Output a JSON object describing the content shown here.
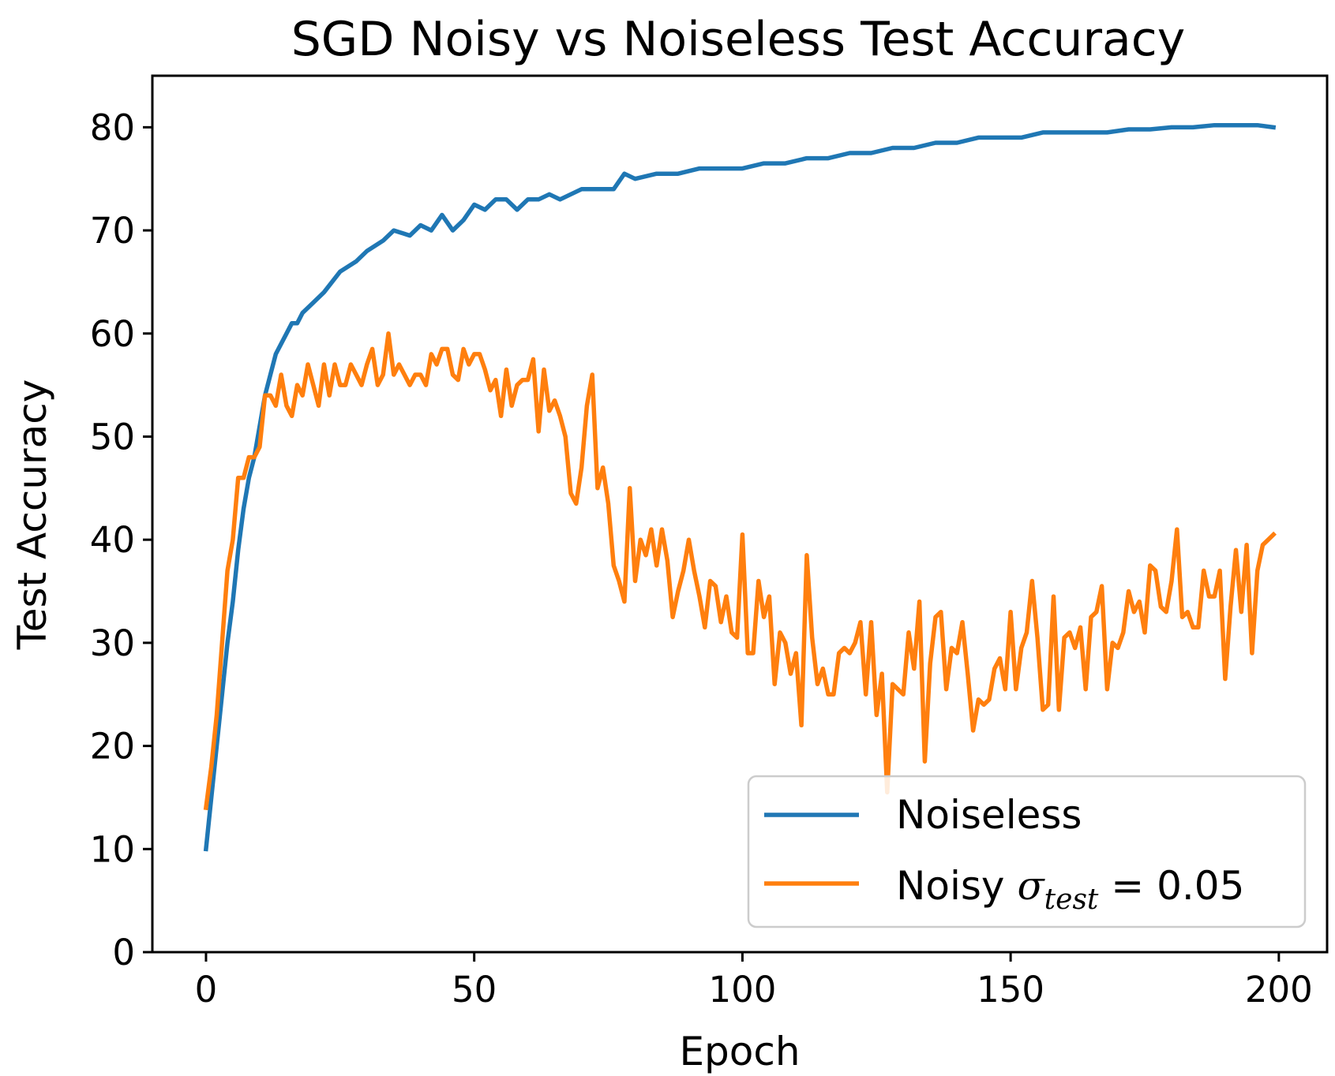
{
  "chart_data": {
    "type": "line",
    "title": "SGD Noisy vs Noiseless Test Accuracy",
    "xlabel": "Epoch",
    "ylabel": "Test Accuracy",
    "xlim": [
      -10,
      209
    ],
    "ylim": [
      0,
      85
    ],
    "xticks": [
      0,
      50,
      100,
      150,
      200
    ],
    "yticks": [
      0,
      10,
      20,
      30,
      40,
      50,
      60,
      70,
      80
    ],
    "grid": false,
    "legend_position": "lower-right",
    "series": [
      {
        "name": "Noiseless",
        "color": "#1f77b4",
        "points": [
          [
            0,
            10
          ],
          [
            1,
            15
          ],
          [
            2,
            20
          ],
          [
            3,
            25
          ],
          [
            4,
            30
          ],
          [
            5,
            34
          ],
          [
            6,
            39
          ],
          [
            7,
            43
          ],
          [
            8,
            46
          ],
          [
            9,
            48
          ],
          [
            10,
            51
          ],
          [
            11,
            54
          ],
          [
            12,
            56
          ],
          [
            13,
            58
          ],
          [
            14,
            59
          ],
          [
            15,
            60
          ],
          [
            16,
            61
          ],
          [
            17,
            61
          ],
          [
            18,
            62
          ],
          [
            19,
            62.5
          ],
          [
            20,
            63
          ],
          [
            22,
            64
          ],
          [
            25,
            66
          ],
          [
            28,
            67
          ],
          [
            30,
            68
          ],
          [
            33,
            69
          ],
          [
            35,
            70
          ],
          [
            38,
            69.5
          ],
          [
            40,
            70.5
          ],
          [
            42,
            70
          ],
          [
            44,
            71.5
          ],
          [
            46,
            70
          ],
          [
            48,
            71
          ],
          [
            50,
            72.5
          ],
          [
            52,
            72
          ],
          [
            54,
            73
          ],
          [
            56,
            73
          ],
          [
            58,
            72
          ],
          [
            60,
            73
          ],
          [
            62,
            73
          ],
          [
            64,
            73.5
          ],
          [
            66,
            73
          ],
          [
            68,
            73.5
          ],
          [
            70,
            74
          ],
          [
            72,
            74
          ],
          [
            74,
            74
          ],
          [
            76,
            74
          ],
          [
            78,
            75.5
          ],
          [
            80,
            75
          ],
          [
            84,
            75.5
          ],
          [
            88,
            75.5
          ],
          [
            92,
            76
          ],
          [
            96,
            76
          ],
          [
            100,
            76
          ],
          [
            104,
            76.5
          ],
          [
            108,
            76.5
          ],
          [
            112,
            77
          ],
          [
            116,
            77
          ],
          [
            120,
            77.5
          ],
          [
            124,
            77.5
          ],
          [
            128,
            78
          ],
          [
            132,
            78
          ],
          [
            136,
            78.5
          ],
          [
            140,
            78.5
          ],
          [
            144,
            79
          ],
          [
            148,
            79
          ],
          [
            152,
            79
          ],
          [
            156,
            79.5
          ],
          [
            160,
            79.5
          ],
          [
            164,
            79.5
          ],
          [
            168,
            79.5
          ],
          [
            172,
            79.8
          ],
          [
            176,
            79.8
          ],
          [
            180,
            80
          ],
          [
            184,
            80
          ],
          [
            188,
            80.2
          ],
          [
            192,
            80.2
          ],
          [
            196,
            80.2
          ],
          [
            199,
            80
          ]
        ]
      },
      {
        "name": "Noisy σtest = 0.05",
        "legend_prefix": "Noisy",
        "legend_symbol": "σ",
        "legend_subscript": "test",
        "legend_suffix": " = 0.05",
        "color": "#ff7f0e",
        "points": [
          [
            0,
            14
          ],
          [
            1,
            18
          ],
          [
            2,
            23
          ],
          [
            3,
            30
          ],
          [
            4,
            37
          ],
          [
            5,
            40
          ],
          [
            6,
            46
          ],
          [
            7,
            46
          ],
          [
            8,
            48
          ],
          [
            9,
            48
          ],
          [
            10,
            49
          ],
          [
            11,
            54
          ],
          [
            12,
            54
          ],
          [
            13,
            53
          ],
          [
            14,
            56
          ],
          [
            15,
            53
          ],
          [
            16,
            52
          ],
          [
            17,
            55
          ],
          [
            18,
            54
          ],
          [
            19,
            57
          ],
          [
            20,
            55
          ],
          [
            21,
            53
          ],
          [
            22,
            57
          ],
          [
            23,
            54
          ],
          [
            24,
            57
          ],
          [
            25,
            55
          ],
          [
            26,
            55
          ],
          [
            27,
            57
          ],
          [
            28,
            56
          ],
          [
            29,
            55
          ],
          [
            30,
            57
          ],
          [
            31,
            58.5
          ],
          [
            32,
            55
          ],
          [
            33,
            56
          ],
          [
            34,
            60
          ],
          [
            35,
            56
          ],
          [
            36,
            57
          ],
          [
            37,
            56
          ],
          [
            38,
            55
          ],
          [
            39,
            56
          ],
          [
            40,
            56
          ],
          [
            41,
            55
          ],
          [
            42,
            58
          ],
          [
            43,
            57
          ],
          [
            44,
            58.5
          ],
          [
            45,
            58.5
          ],
          [
            46,
            56
          ],
          [
            47,
            55.5
          ],
          [
            48,
            58.5
          ],
          [
            49,
            57
          ],
          [
            50,
            58
          ],
          [
            51,
            58
          ],
          [
            52,
            56.5
          ],
          [
            53,
            54.5
          ],
          [
            54,
            55.5
          ],
          [
            55,
            52
          ],
          [
            56,
            56.5
          ],
          [
            57,
            53
          ],
          [
            58,
            55
          ],
          [
            59,
            55.5
          ],
          [
            60,
            55.5
          ],
          [
            61,
            57.5
          ],
          [
            62,
            50.5
          ],
          [
            63,
            56.5
          ],
          [
            64,
            52.5
          ],
          [
            65,
            53.5
          ],
          [
            66,
            52
          ],
          [
            67,
            50
          ],
          [
            68,
            44.5
          ],
          [
            69,
            43.5
          ],
          [
            70,
            47
          ],
          [
            71,
            53
          ],
          [
            72,
            56
          ],
          [
            73,
            45
          ],
          [
            74,
            47
          ],
          [
            75,
            43.5
          ],
          [
            76,
            37.5
          ],
          [
            77,
            36
          ],
          [
            78,
            34
          ],
          [
            79,
            45
          ],
          [
            80,
            36
          ],
          [
            81,
            40
          ],
          [
            82,
            38.5
          ],
          [
            83,
            41
          ],
          [
            84,
            37.5
          ],
          [
            85,
            41
          ],
          [
            86,
            38
          ],
          [
            87,
            32.5
          ],
          [
            88,
            35
          ],
          [
            89,
            37
          ],
          [
            90,
            40
          ],
          [
            91,
            37
          ],
          [
            92,
            34.5
          ],
          [
            93,
            31.5
          ],
          [
            94,
            36
          ],
          [
            95,
            35.5
          ],
          [
            96,
            32
          ],
          [
            97,
            34.5
          ],
          [
            98,
            31
          ],
          [
            99,
            30.5
          ],
          [
            100,
            40.5
          ],
          [
            101,
            29
          ],
          [
            102,
            29
          ],
          [
            103,
            36
          ],
          [
            104,
            32.5
          ],
          [
            105,
            34.5
          ],
          [
            106,
            26
          ],
          [
            107,
            31
          ],
          [
            108,
            30
          ],
          [
            109,
            27
          ],
          [
            110,
            29
          ],
          [
            111,
            22
          ],
          [
            112,
            38.5
          ],
          [
            113,
            30.5
          ],
          [
            114,
            26
          ],
          [
            115,
            27.5
          ],
          [
            116,
            25
          ],
          [
            117,
            25
          ],
          [
            118,
            29
          ],
          [
            119,
            29.5
          ],
          [
            120,
            29
          ],
          [
            121,
            30
          ],
          [
            122,
            32
          ],
          [
            123,
            25
          ],
          [
            124,
            32
          ],
          [
            125,
            23
          ],
          [
            126,
            27
          ],
          [
            127,
            15.5
          ],
          [
            128,
            26
          ],
          [
            129,
            25.5
          ],
          [
            130,
            25
          ],
          [
            131,
            31
          ],
          [
            132,
            27.5
          ],
          [
            133,
            34
          ],
          [
            134,
            18.5
          ],
          [
            135,
            28
          ],
          [
            136,
            32.5
          ],
          [
            137,
            33
          ],
          [
            138,
            25.5
          ],
          [
            139,
            29.5
          ],
          [
            140,
            29
          ],
          [
            141,
            32
          ],
          [
            142,
            27
          ],
          [
            143,
            21.5
          ],
          [
            144,
            24.5
          ],
          [
            145,
            24
          ],
          [
            146,
            24.5
          ],
          [
            147,
            27.5
          ],
          [
            148,
            28.5
          ],
          [
            149,
            25.5
          ],
          [
            150,
            33
          ],
          [
            151,
            25.5
          ],
          [
            152,
            29.5
          ],
          [
            153,
            31
          ],
          [
            154,
            36
          ],
          [
            155,
            30.5
          ],
          [
            156,
            23.5
          ],
          [
            157,
            24
          ],
          [
            158,
            34.5
          ],
          [
            159,
            23.5
          ],
          [
            160,
            30.5
          ],
          [
            161,
            31
          ],
          [
            162,
            29.5
          ],
          [
            163,
            31.5
          ],
          [
            164,
            25.5
          ],
          [
            165,
            32.5
          ],
          [
            166,
            33
          ],
          [
            167,
            35.5
          ],
          [
            168,
            25.5
          ],
          [
            169,
            30
          ],
          [
            170,
            29.5
          ],
          [
            171,
            31
          ],
          [
            172,
            35
          ],
          [
            173,
            33
          ],
          [
            174,
            34
          ],
          [
            175,
            31
          ],
          [
            176,
            37.5
          ],
          [
            177,
            37
          ],
          [
            178,
            33.5
          ],
          [
            179,
            33
          ],
          [
            180,
            36
          ],
          [
            181,
            41
          ],
          [
            182,
            32.5
          ],
          [
            183,
            33
          ],
          [
            184,
            31.5
          ],
          [
            185,
            31.5
          ],
          [
            186,
            37
          ],
          [
            187,
            34.5
          ],
          [
            188,
            34.5
          ],
          [
            189,
            37
          ],
          [
            190,
            26.5
          ],
          [
            191,
            33.5
          ],
          [
            192,
            39
          ],
          [
            193,
            33
          ],
          [
            194,
            39.5
          ],
          [
            195,
            29
          ],
          [
            196,
            37
          ],
          [
            197,
            39.5
          ],
          [
            198,
            40
          ],
          [
            199,
            40.5
          ]
        ]
      }
    ]
  }
}
